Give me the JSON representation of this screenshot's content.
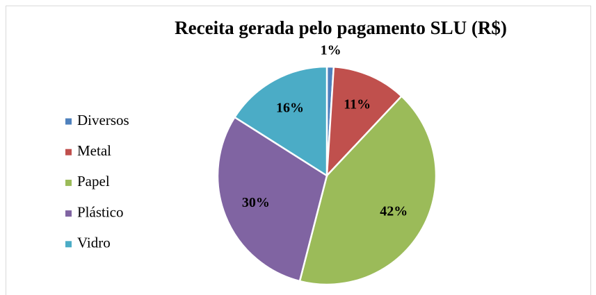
{
  "chart_data": {
    "type": "pie",
    "title": "Receita gerada pelo pagamento SLU (R$)",
    "categories": [
      "Diversos",
      "Metal",
      "Papel",
      "Plástico",
      "Vidro"
    ],
    "values": [
      1,
      11,
      42,
      30,
      16
    ],
    "value_labels": [
      "1%",
      "11%",
      "42%",
      "30%",
      "16%"
    ],
    "colors": [
      "#4f81bd",
      "#c0504d",
      "#9bbb59",
      "#8064a2",
      "#4bacc6"
    ],
    "legend": "left"
  }
}
